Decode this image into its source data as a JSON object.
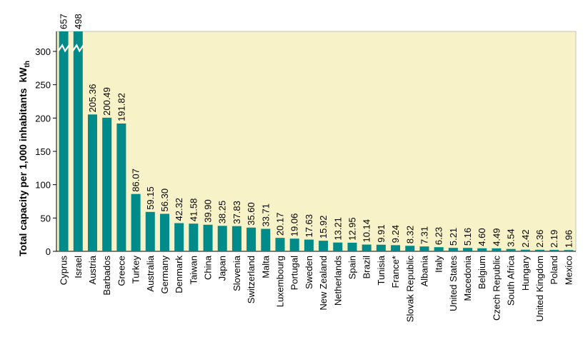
{
  "chart_data": {
    "type": "bar",
    "ylabel": "Total capacity per 1,000 inhabitants",
    "ylabel_unit": "kW",
    "ylabel_unit_sub": "th",
    "ylim": [
      0,
      330
    ],
    "yticks": [
      0,
      50,
      100,
      150,
      200,
      250,
      300
    ],
    "grid": false,
    "axis_break_bars": [
      "Cyprus",
      "Israel"
    ],
    "categories": [
      "Cyprus",
      "Israel",
      "Austria",
      "Barbados",
      "Greece",
      "Turkey",
      "Australia",
      "Germany",
      "Denmark",
      "Taiwan",
      "China",
      "Japan",
      "Slovenia",
      "Switzerland",
      "Malta",
      "Luxembourg",
      "Portugal",
      "Sweden",
      "New Zealand",
      "Netherlands",
      "Spain",
      "Brazil",
      "Tunisia",
      "France*",
      "Slovak Republic",
      "Albania",
      "Italy",
      "United States",
      "Macedonia",
      "Belgium",
      "Czech Republic",
      "South Africa",
      "Hungary",
      "United Kingdom",
      "Poland",
      "Mexico"
    ],
    "values": [
      657,
      498,
      205.36,
      200.49,
      191.82,
      86.07,
      59.15,
      56.3,
      42.32,
      41.58,
      39.9,
      38.25,
      37.83,
      35.6,
      33.71,
      20.17,
      19.06,
      17.63,
      15.92,
      13.21,
      12.95,
      10.14,
      9.91,
      9.24,
      8.32,
      7.31,
      6.23,
      5.21,
      5.16,
      4.6,
      4.49,
      3.54,
      2.42,
      2.36,
      2.19,
      1.96
    ],
    "value_labels": [
      "657",
      "498",
      "205.36",
      "200.49",
      "191.82",
      "86.07",
      "59.15",
      "56.30",
      "42.32",
      "41.58",
      "39.90",
      "38.25",
      "37.83",
      "35.60",
      "33.71",
      "20.17",
      "19.06",
      "17.63",
      "15.92",
      "13.21",
      "12.95",
      "10.14",
      "9.91",
      "9.24",
      "8.32",
      "7.31",
      "6.23",
      "5.21",
      "5.16",
      "4.60",
      "4.49",
      "3.54",
      "2.42",
      "2.36",
      "2.19",
      "1.96"
    ],
    "colors": {
      "bar": "#008B8B",
      "plot_bg": "#F8F2C8",
      "axis": "#000000",
      "plot_border": "#b8b8b8"
    }
  }
}
